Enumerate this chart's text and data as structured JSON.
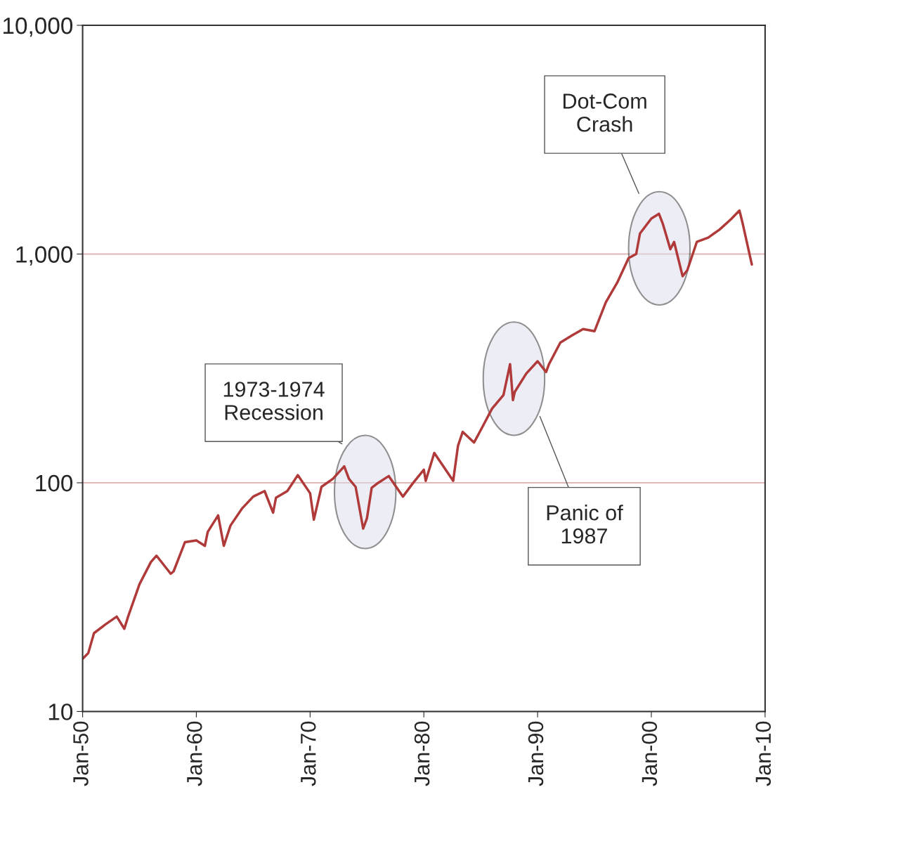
{
  "chart_data": {
    "type": "line",
    "log": "y",
    "grid": "y",
    "ylim": [
      10,
      10000
    ],
    "yticks": [
      10,
      100,
      {
        "value": 1000,
        "label": "1,000"
      },
      {
        "value": 10000,
        "label": "10,000"
      }
    ],
    "xlim": [
      "1950-01",
      "2010-01"
    ],
    "xticks": [
      {
        "value": "1950-01",
        "label": "Jan-50"
      },
      {
        "value": "1960-01",
        "label": "Jan-60"
      },
      {
        "value": "1970-01",
        "label": "Jan-70"
      },
      {
        "value": "1980-01",
        "label": "Jan-80"
      },
      {
        "value": "1990-01",
        "label": "Jan-90"
      },
      {
        "value": "2000-01",
        "label": "Jan-00"
      },
      {
        "value": "2010-01",
        "label": "Jan-10"
      }
    ],
    "series": [
      {
        "color": "#b03a3a",
        "x": [
          "1950-01",
          "1950-07",
          "1951-01",
          "1952-01",
          "1953-01",
          "1953-09",
          "1954-01",
          "1955-01",
          "1956-01",
          "1956-07",
          "1957-10",
          "1958-01",
          "1959-01",
          "1960-01",
          "1960-10",
          "1961-01",
          "1961-12",
          "1962-06",
          "1963-01",
          "1964-01",
          "1965-01",
          "1966-01",
          "1966-10",
          "1967-01",
          "1968-01",
          "1968-12",
          "1970-01",
          "1970-05",
          "1971-01",
          "1972-01",
          "1973-01",
          "1973-06",
          "1974-01",
          "1974-09",
          "1975-01",
          "1975-06",
          "1976-01",
          "1976-12",
          "1978-03",
          "1979-01",
          "1980-01",
          "1980-03",
          "1980-12",
          "1982-08",
          "1983-01",
          "1983-06",
          "1984-06",
          "1985-01",
          "1986-01",
          "1987-01",
          "1987-08",
          "1987-11",
          "1988-01",
          "1989-01",
          "1990-01",
          "1990-10",
          "1991-01",
          "1992-01",
          "1993-01",
          "1994-01",
          "1995-01",
          "1996-01",
          "1997-01",
          "1998-01",
          "1998-09",
          "1999-01",
          "2000-01",
          "2000-09",
          "2001-01",
          "2001-09",
          "2002-01",
          "2002-10",
          "2003-03",
          "2004-01",
          "2005-01",
          "2006-01",
          "2007-01",
          "2007-10",
          "2008-01",
          "2008-11"
        ],
        "values": [
          17,
          18,
          22,
          24,
          26,
          23,
          26,
          36,
          45,
          48,
          40,
          41,
          55,
          56,
          53,
          61,
          72,
          53,
          65,
          77,
          87,
          92,
          74,
          86,
          92,
          108,
          90,
          69,
          96,
          104,
          118,
          104,
          96,
          63,
          70,
          95,
          100,
          107,
          87,
          99,
          114,
          102,
          135,
          102,
          145,
          167,
          150,
          170,
          211,
          242,
          330,
          230,
          250,
          300,
          340,
          305,
          330,
          410,
          440,
          470,
          460,
          615,
          750,
          960,
          1000,
          1230,
          1430,
          1500,
          1360,
          1050,
          1130,
          800,
          850,
          1130,
          1180,
          1280,
          1420,
          1550,
          1380,
          900
        ]
      }
    ],
    "annotations": [
      "1973-1974\nRecession",
      "Panic of\n1987",
      "Dot-Com\nCrash"
    ]
  }
}
